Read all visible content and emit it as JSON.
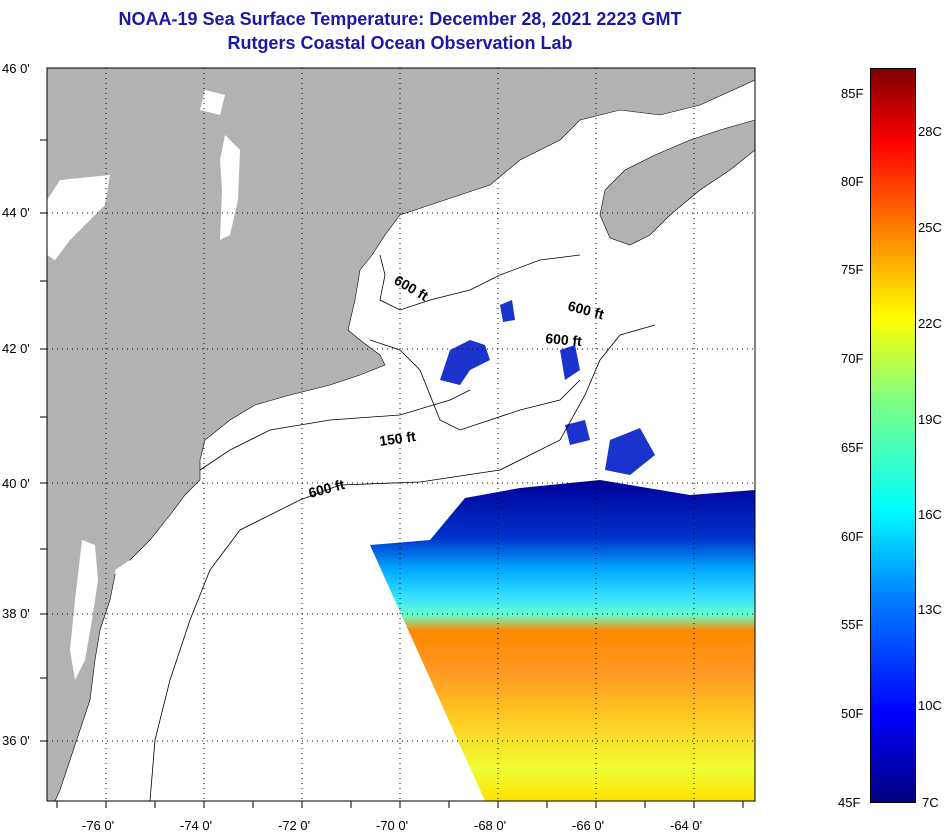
{
  "title": {
    "line1": "NOAA-19 Sea Surface Temperature:  December 28, 2021 2223 GMT",
    "line2": "Rutgers Coastal Ocean Observation Lab"
  },
  "latitude_labels": [
    "46 0'",
    "44 0'",
    "42 0'",
    "40 0'",
    "38 0'",
    "36 0'"
  ],
  "longitude_labels": [
    "-76 0'",
    "-74 0'",
    "-72 0'",
    "-70 0'",
    "-68 0'",
    "-66 0'",
    "-64 0'"
  ],
  "contour_labels": [
    "600 ft",
    "600 ft",
    "600 ft",
    "150 ft",
    "600 ft"
  ],
  "colorbar": {
    "fahrenheit_labels": [
      "85F",
      "80F",
      "75F",
      "70F",
      "65F",
      "60F",
      "55F",
      "50F",
      "45F"
    ],
    "celsius_labels": [
      "28C",
      "25C",
      "22C",
      "19C",
      "16C",
      "13C",
      "10C",
      "7C"
    ]
  },
  "colors": {
    "title": "#1a1aa6",
    "land": "#b2b2b2",
    "ocean": "#ffffff"
  }
}
